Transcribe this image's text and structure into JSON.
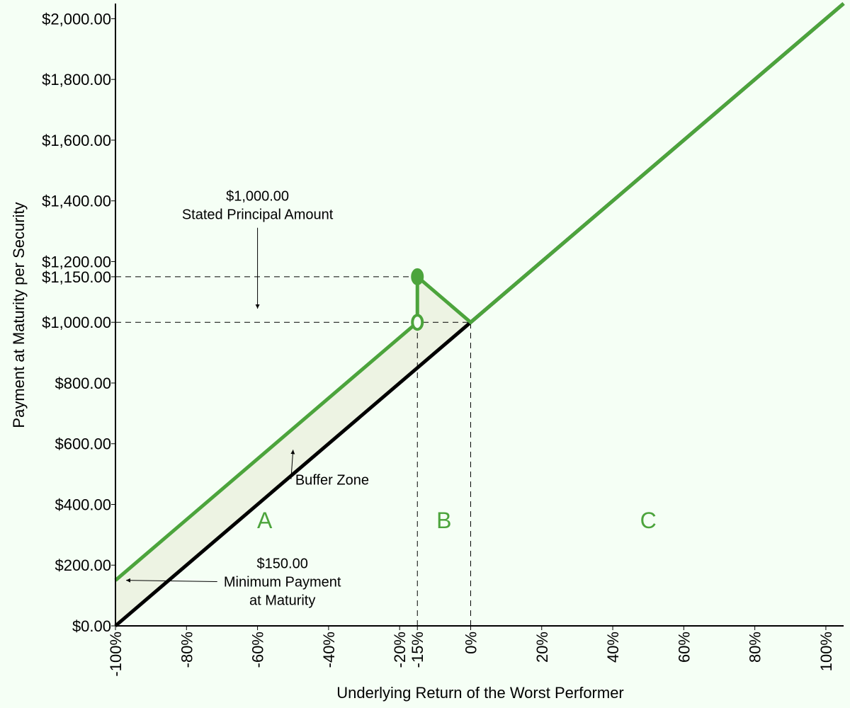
{
  "chart_data": {
    "type": "line",
    "xlabel": "Underlying Return of the Worst Performer",
    "ylabel": "Payment at Maturity per Security",
    "xlim": [
      -100,
      105
    ],
    "ylim": [
      0,
      2050
    ],
    "x_ticks": [
      -100,
      -80,
      -60,
      -40,
      -20,
      -15,
      0,
      20,
      40,
      60,
      80,
      100
    ],
    "x_tick_labels": [
      "-100%",
      "-80%",
      "-60%",
      "-40%",
      "-20%",
      "-15%",
      "0%",
      "20%",
      "40%",
      "60%",
      "80%",
      "100%"
    ],
    "y_ticks": [
      0,
      200,
      400,
      600,
      800,
      1000,
      1150,
      1200,
      1400,
      1600,
      1800,
      2000
    ],
    "y_tick_labels": [
      "$0.00",
      "$200.00",
      "$400.00",
      "$600.00",
      "$800.00",
      "$1,000.00",
      "$1,150.00",
      "$1,200.00",
      "$1,400.00",
      "$1,600.00",
      "$1,800.00",
      "$2,000.00"
    ],
    "series": [
      {
        "color": "#000000",
        "x": [
          -100,
          105
        ],
        "y": [
          0,
          2050
        ]
      },
      {
        "color": "#4ca43c",
        "x": [
          -100,
          -15,
          -15,
          0,
          105
        ],
        "y": [
          150,
          1000,
          1150,
          1000,
          2050
        ]
      }
    ],
    "markers": [
      {
        "x": -15,
        "y": 1150,
        "style": "filled",
        "color": "#4ca43c"
      },
      {
        "x": -15,
        "y": 1000,
        "style": "open",
        "color": "#4ca43c"
      }
    ],
    "reference_lines": [
      {
        "kind": "horizontal",
        "y": 1150,
        "x_from": -100,
        "x_to": -15
      },
      {
        "kind": "horizontal",
        "y": 1000,
        "x_from": -100,
        "x_to": 0
      },
      {
        "kind": "vertical",
        "x": -15,
        "y_from": 0,
        "y_to": 1150
      },
      {
        "kind": "vertical",
        "x": 0,
        "y_from": 0,
        "y_to": 1000
      }
    ],
    "buffer_fill_color": "#edf3e3",
    "zones": [
      {
        "label": "A",
        "x": -58,
        "y": 350
      },
      {
        "label": "B",
        "x": -7.5,
        "y": 350
      },
      {
        "label": "C",
        "x": 50,
        "y": 350
      }
    ],
    "annotations": [
      {
        "lines": [
          "$1,000.00",
          "Stated Principal Amount"
        ],
        "text_x": -60,
        "text_y": 1400,
        "arrow_to": [
          -60,
          1045
        ]
      },
      {
        "lines": [
          "Buffer Zone"
        ],
        "text_x": -39,
        "text_y": 465,
        "arrow_to": [
          -50,
          580
        ]
      },
      {
        "lines": [
          "$150.00",
          "Minimum Payment",
          "at Maturity"
        ],
        "text_x": -53,
        "text_y": 190,
        "arrow_to": [
          -97,
          150
        ]
      }
    ],
    "grid": false,
    "legend": "none"
  }
}
